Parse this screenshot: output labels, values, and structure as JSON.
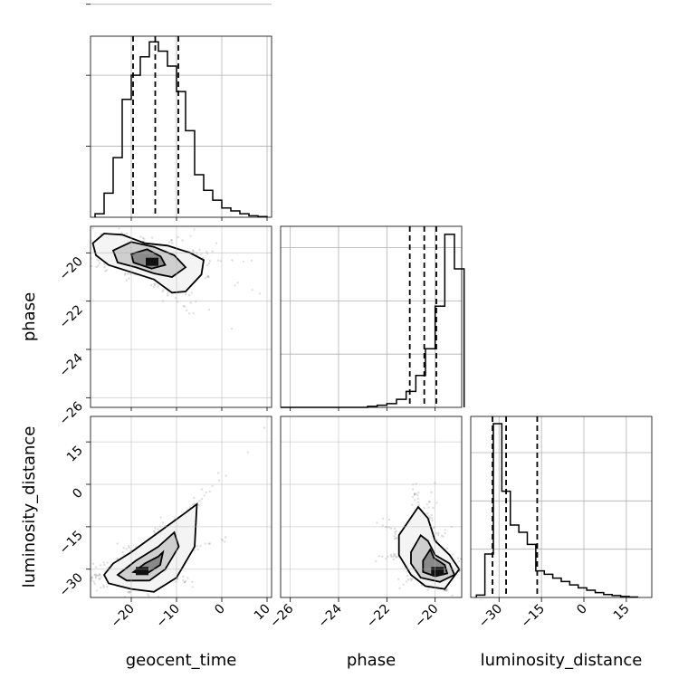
{
  "chart_data": {
    "type": "corner",
    "parameters": [
      "geocent_time",
      "phase",
      "luminosity_distance"
    ],
    "axes": {
      "geocent_time": {
        "lim": [
          -29,
          11
        ],
        "ticks": [
          -20,
          -10,
          0,
          10
        ],
        "tick_labels": [
          "−20",
          "−10",
          "0",
          "10"
        ]
      },
      "phase": {
        "lim": [
          -26.4,
          -18.9
        ],
        "ticks": [
          -26,
          -24,
          -22,
          -20
        ],
        "tick_labels": [
          "−26",
          "−24",
          "−22",
          "−20"
        ]
      },
      "luminosity_distance": {
        "lim": [
          -40,
          24
        ],
        "ticks": [
          -30,
          -15,
          0,
          15
        ],
        "tick_labels": [
          "−30",
          "−15",
          "0",
          "15"
        ]
      }
    },
    "histograms": [
      {
        "parameter": "geocent_time",
        "edges": [
          -28,
          -26,
          -24,
          -22,
          -20,
          -18,
          -16,
          -14,
          -12,
          -10,
          -8,
          -6,
          -4,
          -2,
          0,
          2,
          4,
          6,
          8,
          10
        ],
        "counts": [
          0.05,
          0.34,
          0.84,
          1.66,
          2.0,
          2.26,
          2.47,
          2.34,
          2.13,
          1.77,
          1.22,
          0.6,
          0.38,
          0.24,
          0.13,
          0.09,
          0.05,
          0.02,
          0.01
        ],
        "quantiles": [
          -19.6,
          -14.7,
          -9.6
        ],
        "ylim": [
          0,
          2.55
        ],
        "grid_levels": [
          1,
          2,
          3
        ]
      },
      {
        "parameter": "phase",
        "edges": [
          -26.4,
          -26.0,
          -25.6,
          -25.2,
          -24.8,
          -24.4,
          -24.0,
          -23.6,
          -23.2,
          -22.8,
          -22.4,
          -22.0,
          -21.6,
          -21.2,
          -20.8,
          -20.4,
          -20.0,
          -19.6,
          -19.2,
          -18.8
        ],
        "counts": [
          0,
          0,
          0,
          0,
          0,
          0,
          0,
          0,
          0,
          0.02,
          0.04,
          0.07,
          0.15,
          0.3,
          0.6,
          1.1,
          1.9,
          3.25,
          2.6
        ],
        "quantiles": [
          -21.05,
          -20.45,
          -19.95
        ],
        "ylim": [
          0,
          3.4
        ],
        "grid_levels": [
          1,
          2,
          3
        ]
      },
      {
        "parameter": "luminosity_distance",
        "edges": [
          -38,
          -35,
          -32,
          -29,
          -26,
          -23,
          -20,
          -17,
          -14,
          -11,
          -8,
          -5,
          -2,
          1,
          4,
          7,
          10,
          13,
          16,
          19
        ],
        "counts": [
          0.05,
          0.9,
          3.6,
          2.2,
          1.5,
          1.35,
          1.1,
          0.55,
          0.48,
          0.4,
          0.33,
          0.26,
          0.2,
          0.15,
          0.1,
          0.06,
          0.04,
          0.02,
          0.01
        ],
        "quantiles": [
          -32.3,
          -27.5,
          -16.5
        ],
        "ylim": [
          0,
          3.75
        ],
        "grid_levels": [
          1,
          2,
          3
        ]
      }
    ],
    "joint_distributions": [
      {
        "x": "geocent_time",
        "y": "phase",
        "contours": [
          [
            [
              -28.5,
              -19.6
            ],
            [
              -26,
              -19.2
            ],
            [
              -22,
              -19.25
            ],
            [
              -17,
              -19.6
            ],
            [
              -12,
              -19.7
            ],
            [
              -7,
              -20.0
            ],
            [
              -4,
              -20.3
            ],
            [
              -4.5,
              -20.9
            ],
            [
              -8,
              -21.6
            ],
            [
              -11,
              -21.65
            ],
            [
              -15,
              -21.1
            ],
            [
              -20,
              -20.8
            ],
            [
              -25,
              -20.5
            ],
            [
              -27.8,
              -20.1
            ],
            [
              -28.5,
              -19.6
            ]
          ],
          [
            [
              -24,
              -19.9
            ],
            [
              -20,
              -19.55
            ],
            [
              -15,
              -19.75
            ],
            [
              -10.5,
              -20.1
            ],
            [
              -8,
              -20.6
            ],
            [
              -11,
              -21.0
            ],
            [
              -15,
              -20.85
            ],
            [
              -19,
              -20.6
            ],
            [
              -23,
              -20.4
            ],
            [
              -24,
              -19.9
            ]
          ],
          [
            [
              -20,
              -20.05
            ],
            [
              -16.5,
              -19.85
            ],
            [
              -13.5,
              -20.15
            ],
            [
              -12.5,
              -20.5
            ],
            [
              -15.5,
              -20.65
            ],
            [
              -19.5,
              -20.4
            ],
            [
              -20,
              -20.05
            ]
          ]
        ],
        "density_peak": [
          -15.4,
          -20.35
        ]
      },
      {
        "x": "geocent_time",
        "y": "luminosity_distance",
        "contours": [
          [
            [
              -26,
              -32
            ],
            [
              -24,
              -28
            ],
            [
              -20,
              -24
            ],
            [
              -14,
              -17
            ],
            [
              -8,
              -10
            ],
            [
              -5.5,
              -7
            ],
            [
              -6,
              -22
            ],
            [
              -10,
              -33
            ],
            [
              -15,
              -38
            ],
            [
              -20,
              -37
            ],
            [
              -25,
              -35
            ],
            [
              -26,
              -32
            ]
          ],
          [
            [
              -23,
              -32
            ],
            [
              -19,
              -27
            ],
            [
              -14,
              -22
            ],
            [
              -10.5,
              -17
            ],
            [
              -9.5,
              -22
            ],
            [
              -12.5,
              -30
            ],
            [
              -16,
              -34
            ],
            [
              -21,
              -34
            ],
            [
              -23,
              -32
            ]
          ],
          [
            [
              -19.5,
              -31
            ],
            [
              -17,
              -28
            ],
            [
              -14,
              -25.5
            ],
            [
              -13,
              -24
            ],
            [
              -13.6,
              -28.5
            ],
            [
              -16.5,
              -31.5
            ],
            [
              -19.5,
              -31
            ]
          ]
        ],
        "density_peak": [
          -17.6,
          -30.5
        ]
      },
      {
        "x": "phase",
        "y": "luminosity_distance",
        "contours": [
          [
            [
              -21.5,
              -18
            ],
            [
              -20.7,
              -8
            ],
            [
              -20.3,
              -12
            ],
            [
              -20.0,
              -20
            ],
            [
              -19.4,
              -25
            ],
            [
              -19.0,
              -30
            ],
            [
              -19.6,
              -37
            ],
            [
              -20.4,
              -36
            ],
            [
              -21.0,
              -32
            ],
            [
              -21.5,
              -25
            ],
            [
              -21.5,
              -18
            ]
          ],
          [
            [
              -21.0,
              -24
            ],
            [
              -20.6,
              -18
            ],
            [
              -20.3,
              -20
            ],
            [
              -20.0,
              -25
            ],
            [
              -19.4,
              -28
            ],
            [
              -19.2,
              -32
            ],
            [
              -19.8,
              -34.5
            ],
            [
              -20.6,
              -33
            ],
            [
              -21.0,
              -28
            ],
            [
              -21.0,
              -24
            ]
          ],
          [
            [
              -20.5,
              -27
            ],
            [
              -20.2,
              -23
            ],
            [
              -20.05,
              -26
            ],
            [
              -19.6,
              -28.5
            ],
            [
              -19.5,
              -31.5
            ],
            [
              -20.0,
              -32.5
            ],
            [
              -20.5,
              -31
            ],
            [
              -20.5,
              -27
            ]
          ]
        ],
        "density_peak": [
          -19.9,
          -30.5
        ]
      }
    ]
  }
}
